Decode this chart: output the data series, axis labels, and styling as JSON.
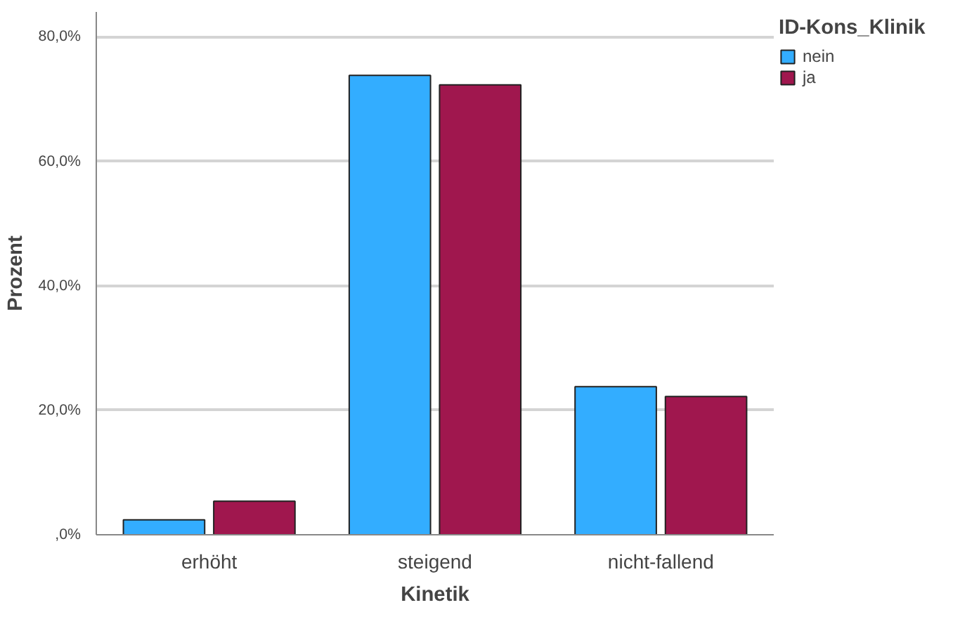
{
  "chart_data": {
    "type": "bar",
    "xlabel": "Kinetik",
    "ylabel": "Prozent",
    "legend_title": "ID-Kons_Klinik",
    "categories": [
      "erhöht",
      "steigend",
      "nicht-fallend"
    ],
    "series": [
      {
        "name": "nein",
        "color": "#33adff",
        "values": [
          2.4,
          73.8,
          23.8
        ]
      },
      {
        "name": "ja",
        "color": "#a0174e",
        "values": [
          5.4,
          72.3,
          22.2
        ]
      }
    ],
    "ylim": [
      0,
      84
    ],
    "yticks": [
      {
        "value": 0,
        "label": ",0%"
      },
      {
        "value": 20,
        "label": "20,0%"
      },
      {
        "value": 40,
        "label": "40,0%"
      },
      {
        "value": 60,
        "label": "60,0%"
      },
      {
        "value": 80,
        "label": "80,0%"
      }
    ],
    "grid": "y",
    "legend": "top right"
  }
}
